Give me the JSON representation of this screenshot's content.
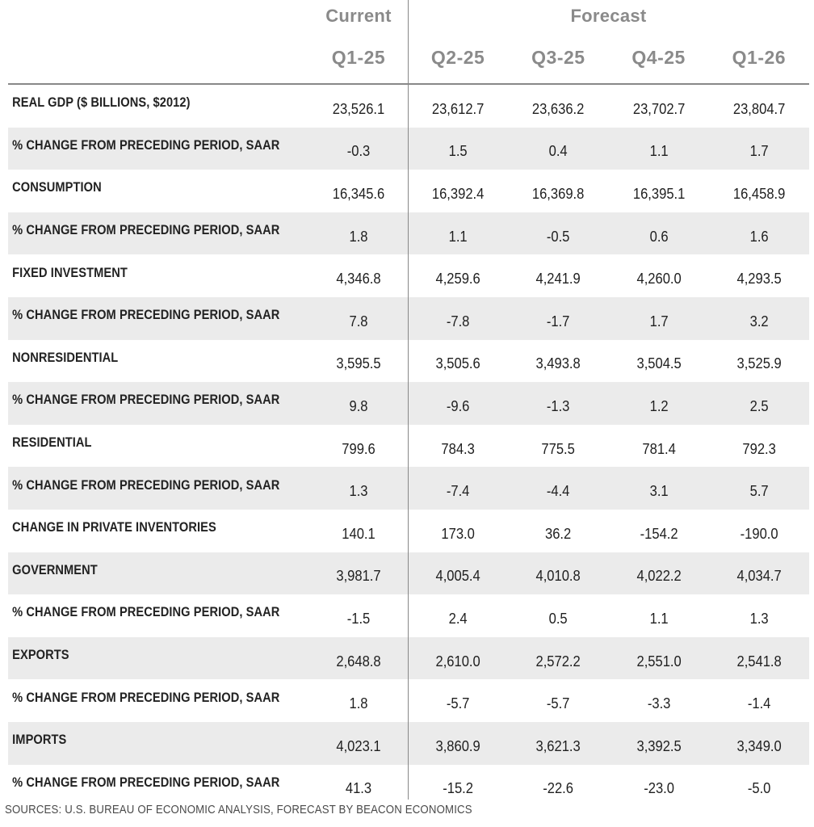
{
  "chart_data": {
    "type": "table",
    "column_groups": [
      {
        "label": "Current",
        "span": 1
      },
      {
        "label": "Forecast",
        "span": 4
      }
    ],
    "columns": [
      "Q1-25",
      "Q2-25",
      "Q3-25",
      "Q4-25",
      "Q1-26"
    ],
    "rows": [
      {
        "label": "REAL GDP ($ BILLIONS, $2012)",
        "values": [
          "23,526.1",
          "23,612.7",
          "23,636.2",
          "23,702.7",
          "23,804.7"
        ]
      },
      {
        "label": "% CHANGE FROM PRECEDING PERIOD, SAAR",
        "values": [
          "-0.3",
          "1.5",
          "0.4",
          "1.1",
          "1.7"
        ]
      },
      {
        "label": "CONSUMPTION",
        "values": [
          "16,345.6",
          "16,392.4",
          "16,369.8",
          "16,395.1",
          "16,458.9"
        ]
      },
      {
        "label": "% CHANGE FROM PRECEDING PERIOD, SAAR",
        "values": [
          "1.8",
          "1.1",
          "-0.5",
          "0.6",
          "1.6"
        ]
      },
      {
        "label": "FIXED INVESTMENT",
        "values": [
          "4,346.8",
          "4,259.6",
          "4,241.9",
          "4,260.0",
          "4,293.5"
        ]
      },
      {
        "label": "% CHANGE FROM PRECEDING PERIOD, SAAR",
        "values": [
          "7.8",
          "-7.8",
          "-1.7",
          "1.7",
          "3.2"
        ]
      },
      {
        "label": "NONRESIDENTIAL",
        "values": [
          "3,595.5",
          "3,505.6",
          "3,493.8",
          "3,504.5",
          "3,525.9"
        ]
      },
      {
        "label": "% CHANGE FROM PRECEDING PERIOD, SAAR",
        "values": [
          "9.8",
          "-9.6",
          "-1.3",
          "1.2",
          "2.5"
        ]
      },
      {
        "label": "RESIDENTIAL",
        "values": [
          "799.6",
          "784.3",
          "775.5",
          "781.4",
          "792.3"
        ]
      },
      {
        "label": "% CHANGE FROM PRECEDING PERIOD, SAAR",
        "values": [
          "1.3",
          "-7.4",
          "-4.4",
          "3.1",
          "5.7"
        ]
      },
      {
        "label": "CHANGE IN PRIVATE INVENTORIES",
        "values": [
          "140.1",
          "173.0",
          "36.2",
          "-154.2",
          "-190.0"
        ]
      },
      {
        "label": "GOVERNMENT",
        "values": [
          "3,981.7",
          "4,005.4",
          "4,010.8",
          "4,022.2",
          "4,034.7"
        ]
      },
      {
        "label": "% CHANGE FROM PRECEDING PERIOD, SAAR",
        "values": [
          "-1.5",
          "2.4",
          "0.5",
          "1.1",
          "1.3"
        ]
      },
      {
        "label": "EXPORTS",
        "values": [
          "2,648.8",
          "2,610.0",
          "2,572.2",
          "2,551.0",
          "2,541.8"
        ]
      },
      {
        "label": "% CHANGE FROM PRECEDING PERIOD, SAAR",
        "values": [
          "1.8",
          "-5.7",
          "-5.7",
          "-3.3",
          "-1.4"
        ]
      },
      {
        "label": "IMPORTS",
        "values": [
          "4,023.1",
          "3,860.9",
          "3,621.3",
          "3,392.5",
          "3,349.0"
        ]
      },
      {
        "label": "% CHANGE FROM PRECEDING PERIOD, SAAR",
        "values": [
          "41.3",
          "-15.2",
          "-22.6",
          "-23.0",
          "-5.0"
        ]
      }
    ],
    "source": "SOURCES: U.S. BUREAU OF ECONOMIC ANALYSIS, FORECAST BY BEACON ECONOMICS"
  },
  "colors": {
    "header_text": "#8a8a8a",
    "shaded_row": "#ebebeb",
    "rule": "#888888"
  }
}
